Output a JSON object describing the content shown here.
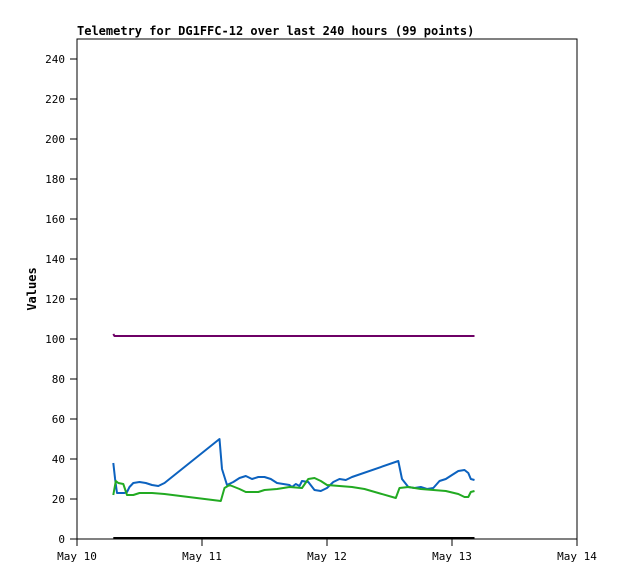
{
  "chart_data": {
    "type": "line",
    "title": "Telemetry for DG1FFC-12 over last 240 hours (99 points)",
    "xlabel": "",
    "ylabel": "Values",
    "xlim": [
      "May 10",
      "May 14"
    ],
    "ylim": [
      0,
      250
    ],
    "x_ticks": [
      "May 10",
      "May 11",
      "May 12",
      "May 13",
      "May 14"
    ],
    "y_ticks": [
      0,
      20,
      40,
      60,
      80,
      100,
      120,
      140,
      160,
      180,
      200,
      220,
      240
    ],
    "grid": false,
    "legend": "none",
    "series": [
      {
        "color": "#6e0066",
        "points": [
          [
            0.29,
            102.5
          ],
          [
            0.3,
            101.5
          ],
          [
            0.5,
            101.5
          ],
          [
            1.0,
            101.5
          ],
          [
            1.5,
            101.5
          ],
          [
            2.0,
            101.5
          ],
          [
            2.5,
            101.5
          ],
          [
            3.0,
            101.5
          ],
          [
            3.18,
            101.5
          ]
        ]
      },
      {
        "color": "#0c62bf",
        "points": [
          [
            0.29,
            38
          ],
          [
            0.305,
            30
          ],
          [
            0.32,
            23
          ],
          [
            0.36,
            23
          ],
          [
            0.38,
            23
          ],
          [
            0.4,
            23.5
          ],
          [
            0.42,
            26
          ],
          [
            0.45,
            28
          ],
          [
            0.5,
            28.5
          ],
          [
            0.55,
            28
          ],
          [
            0.6,
            27
          ],
          [
            0.65,
            26.5
          ],
          [
            0.7,
            28
          ],
          [
            1.14,
            50
          ],
          [
            1.16,
            35
          ],
          [
            1.2,
            27
          ],
          [
            1.25,
            28.5
          ],
          [
            1.3,
            30.5
          ],
          [
            1.35,
            31.5
          ],
          [
            1.4,
            30
          ],
          [
            1.45,
            31
          ],
          [
            1.5,
            31
          ],
          [
            1.55,
            30
          ],
          [
            1.6,
            28
          ],
          [
            1.65,
            27.5
          ],
          [
            1.7,
            27
          ],
          [
            1.72,
            26
          ],
          [
            1.75,
            27.5
          ],
          [
            1.78,
            26.5
          ],
          [
            1.8,
            29
          ],
          [
            1.85,
            28.5
          ],
          [
            1.9,
            24.5
          ],
          [
            1.95,
            24
          ],
          [
            2.0,
            25.5
          ],
          [
            2.05,
            28.5
          ],
          [
            2.1,
            30
          ],
          [
            2.15,
            29.5
          ],
          [
            2.2,
            31
          ],
          [
            2.57,
            39
          ],
          [
            2.6,
            30
          ],
          [
            2.65,
            26
          ],
          [
            2.7,
            25.5
          ],
          [
            2.75,
            26
          ],
          [
            2.8,
            25
          ],
          [
            2.85,
            25.5
          ],
          [
            2.9,
            29
          ],
          [
            2.95,
            30
          ],
          [
            3.0,
            32
          ],
          [
            3.05,
            34
          ],
          [
            3.1,
            34.5
          ],
          [
            3.13,
            33
          ],
          [
            3.15,
            30
          ],
          [
            3.18,
            29.5
          ]
        ]
      },
      {
        "color": "#22aa22",
        "points": [
          [
            0.29,
            22
          ],
          [
            0.31,
            29
          ],
          [
            0.33,
            28
          ],
          [
            0.37,
            27.5
          ],
          [
            0.4,
            22
          ],
          [
            0.45,
            22
          ],
          [
            0.5,
            23
          ],
          [
            0.6,
            23
          ],
          [
            0.7,
            22.5
          ],
          [
            1.15,
            19
          ],
          [
            1.18,
            25.5
          ],
          [
            1.22,
            27
          ],
          [
            1.3,
            25
          ],
          [
            1.35,
            23.5
          ],
          [
            1.45,
            23.5
          ],
          [
            1.5,
            24.5
          ],
          [
            1.6,
            25
          ],
          [
            1.65,
            25.5
          ],
          [
            1.7,
            26
          ],
          [
            1.8,
            25.5
          ],
          [
            1.85,
            30
          ],
          [
            1.9,
            30.5
          ],
          [
            1.95,
            29
          ],
          [
            2.0,
            27
          ],
          [
            2.1,
            26.5
          ],
          [
            2.2,
            26
          ],
          [
            2.3,
            25
          ],
          [
            2.55,
            20.5
          ],
          [
            2.58,
            25.5
          ],
          [
            2.65,
            26
          ],
          [
            2.75,
            25
          ],
          [
            2.85,
            24.5
          ],
          [
            2.95,
            24
          ],
          [
            3.05,
            22.5
          ],
          [
            3.1,
            21
          ],
          [
            3.13,
            21
          ],
          [
            3.15,
            23.5
          ],
          [
            3.18,
            24
          ]
        ]
      },
      {
        "color": "#000000",
        "points": [
          [
            0.29,
            0.5
          ],
          [
            3.18,
            0.5
          ]
        ]
      }
    ]
  }
}
